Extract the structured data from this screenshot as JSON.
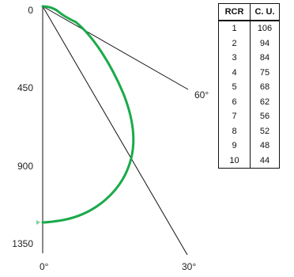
{
  "axis_labels": {
    "y_ticks": [
      "0",
      "450",
      "900",
      "1350"
    ],
    "angle_60": "60°",
    "angle_0": "0°",
    "angle_30": "30°"
  },
  "table": {
    "headers": [
      "RCR",
      "C. U."
    ],
    "rows": [
      [
        "1",
        "106"
      ],
      [
        "2",
        "94"
      ],
      [
        "3",
        "84"
      ],
      [
        "4",
        "75"
      ],
      [
        "5",
        "68"
      ],
      [
        "6",
        "62"
      ],
      [
        "7",
        "56"
      ],
      [
        "8",
        "52"
      ],
      [
        "9",
        "48"
      ],
      [
        "10",
        "44"
      ]
    ]
  },
  "colors": {
    "curve": "#1aaa4a",
    "lines": "#111111"
  }
}
